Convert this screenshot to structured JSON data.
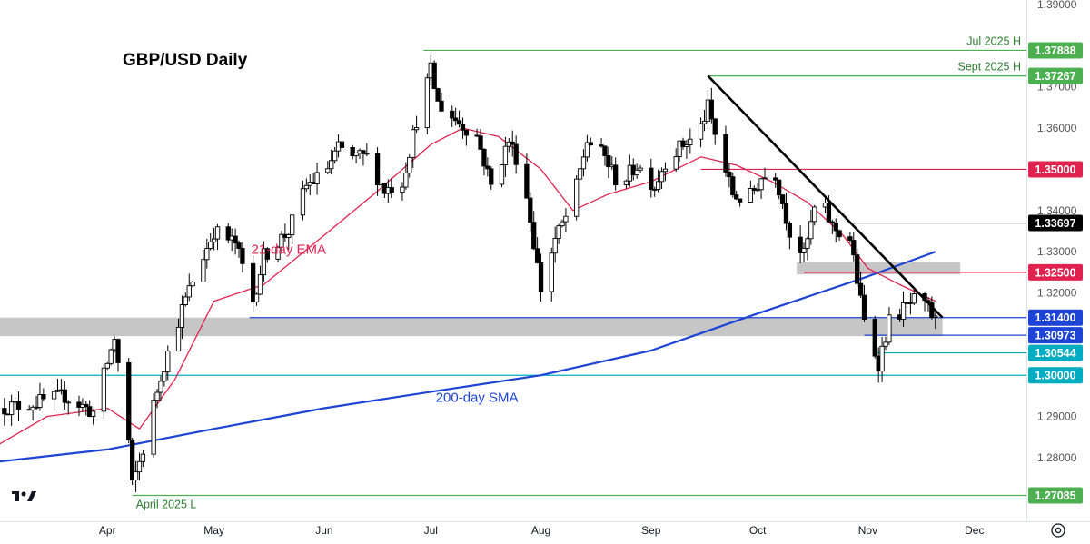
{
  "chart_data": {
    "type": "candlestick",
    "title": "GBP/USD Daily",
    "price_range": [
      1.265,
      1.39
    ],
    "y_ticks": [
      "1.39000",
      "1.37000",
      "1.36000",
      "1.35000",
      "1.34000",
      "1.33000",
      "1.32000",
      "1.29000",
      "1.28000"
    ],
    "x_ticks": [
      {
        "label": "Apr",
        "date": "2025-04-01"
      },
      {
        "label": "May",
        "date": "2025-05-01"
      },
      {
        "label": "Jun",
        "date": "2025-06-01"
      },
      {
        "label": "Jul",
        "date": "2025-07-01"
      },
      {
        "label": "Aug",
        "date": "2025-08-01"
      },
      {
        "label": "Sep",
        "date": "2025-09-01"
      },
      {
        "label": "Oct",
        "date": "2025-10-01"
      },
      {
        "label": "Nov",
        "date": "2025-11-01"
      },
      {
        "label": "Dec",
        "date": "2025-12-01"
      }
    ],
    "candle_colors": {
      "up": "#ffffff",
      "down": "#000000",
      "outline": "#000000"
    },
    "price_path": [
      [
        "2025-03-01",
        1.292
      ],
      [
        "2025-03-10",
        1.293
      ],
      [
        "2025-03-20",
        1.295
      ],
      [
        "2025-03-28",
        1.291
      ],
      [
        "2025-04-03",
        1.309
      ],
      [
        "2025-04-07",
        1.284
      ],
      [
        "2025-04-08",
        1.273
      ],
      [
        "2025-04-11",
        1.282
      ],
      [
        "2025-04-16",
        1.3
      ],
      [
        "2025-04-22",
        1.316
      ],
      [
        "2025-04-25",
        1.323
      ],
      [
        "2025-05-01",
        1.335
      ],
      [
        "2025-05-07",
        1.332
      ],
      [
        "2025-05-12",
        1.318
      ],
      [
        "2025-05-15",
        1.329
      ],
      [
        "2025-05-22",
        1.335
      ],
      [
        "2025-05-27",
        1.346
      ],
      [
        "2025-06-01",
        1.349
      ],
      [
        "2025-06-05",
        1.355
      ],
      [
        "2025-06-09",
        1.353
      ],
      [
        "2025-06-13",
        1.353
      ],
      [
        "2025-06-18",
        1.345
      ],
      [
        "2025-06-23",
        1.347
      ],
      [
        "2025-06-27",
        1.362
      ],
      [
        "2025-07-01",
        1.374
      ],
      [
        "2025-07-03",
        1.366
      ],
      [
        "2025-07-08",
        1.362
      ],
      [
        "2025-07-14",
        1.358
      ],
      [
        "2025-07-18",
        1.346
      ],
      [
        "2025-07-23",
        1.357
      ],
      [
        "2025-07-27",
        1.349
      ],
      [
        "2025-08-01",
        1.321
      ],
      [
        "2025-08-05",
        1.333
      ],
      [
        "2025-08-10",
        1.342
      ],
      [
        "2025-08-14",
        1.357
      ],
      [
        "2025-08-19",
        1.353
      ],
      [
        "2025-08-23",
        1.346
      ],
      [
        "2025-08-28",
        1.351
      ],
      [
        "2025-09-02",
        1.346
      ],
      [
        "2025-09-05",
        1.352
      ],
      [
        "2025-09-10",
        1.356
      ],
      [
        "2025-09-14",
        1.358
      ],
      [
        "2025-09-17",
        1.365
      ],
      [
        "2025-09-20",
        1.355
      ],
      [
        "2025-09-24",
        1.344
      ],
      [
        "2025-09-28",
        1.342
      ],
      [
        "2025-10-02",
        1.348
      ],
      [
        "2025-10-06",
        1.349
      ],
      [
        "2025-10-10",
        1.335
      ],
      [
        "2025-10-14",
        1.329
      ],
      [
        "2025-10-18",
        1.344
      ],
      [
        "2025-10-22",
        1.336
      ],
      [
        "2025-10-27",
        1.333
      ],
      [
        "2025-10-31",
        1.313
      ],
      [
        "2025-11-04",
        1.303
      ],
      [
        "2025-11-07",
        1.313
      ],
      [
        "2025-11-11",
        1.316
      ],
      [
        "2025-11-14",
        1.318
      ],
      [
        "2025-11-18",
        1.316
      ],
      [
        "2025-11-20",
        1.313
      ]
    ],
    "ema21": [
      [
        "2025-03-01",
        1.283
      ],
      [
        "2025-03-15",
        1.29
      ],
      [
        "2025-04-01",
        1.292
      ],
      [
        "2025-04-10",
        1.287
      ],
      [
        "2025-04-20",
        1.299
      ],
      [
        "2025-05-01",
        1.318
      ],
      [
        "2025-05-15",
        1.322
      ],
      [
        "2025-06-01",
        1.334
      ],
      [
        "2025-06-15",
        1.344
      ],
      [
        "2025-07-01",
        1.356
      ],
      [
        "2025-07-10",
        1.36
      ],
      [
        "2025-07-20",
        1.358
      ],
      [
        "2025-08-01",
        1.35
      ],
      [
        "2025-08-10",
        1.34
      ],
      [
        "2025-08-20",
        1.344
      ],
      [
        "2025-09-01",
        1.347
      ],
      [
        "2025-09-15",
        1.353
      ],
      [
        "2025-09-25",
        1.351
      ],
      [
        "2025-10-05",
        1.347
      ],
      [
        "2025-10-15",
        1.342
      ],
      [
        "2025-10-25",
        1.334
      ],
      [
        "2025-11-01",
        1.326
      ],
      [
        "2025-11-10",
        1.322
      ],
      [
        "2025-11-20",
        1.318
      ]
    ],
    "sma200": [
      [
        "2025-03-01",
        1.279
      ],
      [
        "2025-04-01",
        1.282
      ],
      [
        "2025-05-01",
        1.287
      ],
      [
        "2025-06-01",
        1.292
      ],
      [
        "2025-07-01",
        1.296
      ],
      [
        "2025-08-01",
        1.3
      ],
      [
        "2025-09-01",
        1.306
      ],
      [
        "2025-10-01",
        1.315
      ],
      [
        "2025-11-01",
        1.324
      ],
      [
        "2025-11-20",
        1.33
      ]
    ],
    "trendline": {
      "from": [
        "2025-09-17",
        1.3727
      ],
      "to": [
        "2025-11-22",
        1.314
      ],
      "color": "#000000"
    },
    "support_zones": [
      {
        "from": "2025-03-01",
        "to": "2025-11-22",
        "low": 1.3095,
        "high": 1.314,
        "color": "#a0a0a0"
      },
      {
        "from": "2025-10-12",
        "to": "2025-11-27",
        "low": 1.3245,
        "high": 1.3275,
        "color": "#a0a0a0"
      }
    ],
    "levels": [
      {
        "value": 1.37888,
        "label": "1.37888",
        "from": "2025-06-29",
        "color": "#4caf50",
        "note": "Jul 2025 H"
      },
      {
        "value": 1.37267,
        "label": "1.37267",
        "from": "2025-09-17",
        "color": "#4caf50",
        "note": "Sept 2025 H"
      },
      {
        "value": 1.35,
        "label": "1.35000",
        "from": "2025-09-15",
        "color": "#e0234e",
        "note": ""
      },
      {
        "value": 1.33697,
        "label": "1.33697",
        "from": "2025-10-28",
        "color": "#000000",
        "note": ""
      },
      {
        "value": 1.325,
        "label": "1.32500",
        "from": "2025-10-14",
        "color": "#e0234e",
        "note": ""
      },
      {
        "value": 1.314,
        "label": "1.31400",
        "from": "2025-05-11",
        "color": "#1e44d6",
        "note": ""
      },
      {
        "value": 1.30973,
        "label": "1.30973",
        "from": "2025-10-31",
        "color": "#1e44d6",
        "note": ""
      },
      {
        "value": 1.30544,
        "label": "1.30544",
        "from": "2025-11-03",
        "color": "#00acc1",
        "note": ""
      },
      {
        "value": 1.3,
        "label": "1.30000",
        "from": "2025-03-01",
        "color": "#00acc1",
        "note": ""
      },
      {
        "value": 1.27085,
        "label": "1.27085",
        "from": "2025-04-08",
        "color": "#4caf50",
        "note": "April 2025 L"
      }
    ],
    "annotations": [
      {
        "text": "21-day EMA",
        "date": "2025-05-22",
        "price": 1.3295,
        "color": "#e0234e"
      },
      {
        "text": "200-day SMA",
        "date": "2025-07-14",
        "price": 1.2935,
        "color": "#1e44d6"
      }
    ],
    "brand": "TV"
  }
}
